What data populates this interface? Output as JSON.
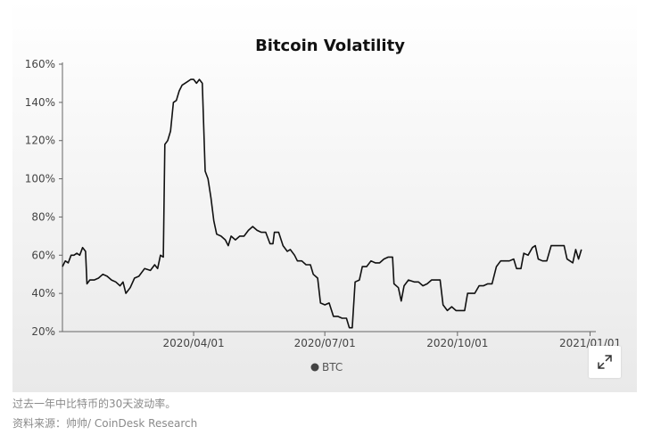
{
  "caption": "过去一年中比特币的30天波动率。",
  "source": "资料来源：帅帅/ CoinDesk Research",
  "expand_icon": "expand-icon",
  "chart_data": {
    "type": "line",
    "title": "Bitcoin Volatility",
    "xlabel": "",
    "ylabel": "",
    "x_ticks": [
      "2020/04/01",
      "2020/07/01",
      "2020/10/01",
      "2021/01/01"
    ],
    "y_ticks": [
      "20%",
      "40%",
      "60%",
      "80%",
      "100%",
      "120%",
      "140%",
      "160%"
    ],
    "ylim": [
      20,
      160
    ],
    "xlim": [
      "2020-01-01",
      "2021-01-05"
    ],
    "grid": false,
    "legend_position": "bottom",
    "line_color": "#111111",
    "series": [
      {
        "name": "BTC",
        "points": [
          [
            "2020-01-01",
            54
          ],
          [
            "2020-01-03",
            57
          ],
          [
            "2020-01-05",
            56
          ],
          [
            "2020-01-07",
            60
          ],
          [
            "2020-01-09",
            60
          ],
          [
            "2020-01-11",
            61
          ],
          [
            "2020-01-13",
            60
          ],
          [
            "2020-01-15",
            64
          ],
          [
            "2020-01-17",
            62
          ],
          [
            "2020-01-18",
            45
          ],
          [
            "2020-01-20",
            47
          ],
          [
            "2020-01-23",
            47
          ],
          [
            "2020-01-26",
            48
          ],
          [
            "2020-01-29",
            50
          ],
          [
            "2020-02-01",
            49
          ],
          [
            "2020-02-04",
            47
          ],
          [
            "2020-02-07",
            46
          ],
          [
            "2020-02-10",
            44
          ],
          [
            "2020-02-12",
            46
          ],
          [
            "2020-02-14",
            40
          ],
          [
            "2020-02-17",
            43
          ],
          [
            "2020-02-20",
            48
          ],
          [
            "2020-02-23",
            49
          ],
          [
            "2020-02-27",
            53
          ],
          [
            "2020-03-02",
            52
          ],
          [
            "2020-03-05",
            55
          ],
          [
            "2020-03-07",
            53
          ],
          [
            "2020-03-09",
            60
          ],
          [
            "2020-03-11",
            59
          ],
          [
            "2020-03-12",
            118
          ],
          [
            "2020-03-14",
            120
          ],
          [
            "2020-03-16",
            125
          ],
          [
            "2020-03-18",
            140
          ],
          [
            "2020-03-20",
            141
          ],
          [
            "2020-03-22",
            146
          ],
          [
            "2020-03-24",
            149
          ],
          [
            "2020-03-26",
            150
          ],
          [
            "2020-03-28",
            151
          ],
          [
            "2020-03-30",
            152
          ],
          [
            "2020-04-01",
            152
          ],
          [
            "2020-04-03",
            150
          ],
          [
            "2020-04-05",
            152
          ],
          [
            "2020-04-07",
            150
          ],
          [
            "2020-04-09",
            104
          ],
          [
            "2020-04-11",
            100
          ],
          [
            "2020-04-13",
            90
          ],
          [
            "2020-04-15",
            78
          ],
          [
            "2020-04-17",
            71
          ],
          [
            "2020-04-20",
            70
          ],
          [
            "2020-04-23",
            68
          ],
          [
            "2020-04-25",
            65
          ],
          [
            "2020-04-27",
            70
          ],
          [
            "2020-04-30",
            68
          ],
          [
            "2020-05-03",
            70
          ],
          [
            "2020-05-06",
            70
          ],
          [
            "2020-05-09",
            73
          ],
          [
            "2020-05-12",
            75
          ],
          [
            "2020-05-15",
            73
          ],
          [
            "2020-05-18",
            72
          ],
          [
            "2020-05-21",
            72
          ],
          [
            "2020-05-24",
            66
          ],
          [
            "2020-05-26",
            66
          ],
          [
            "2020-05-27",
            72
          ],
          [
            "2020-05-30",
            72
          ],
          [
            "2020-06-02",
            65
          ],
          [
            "2020-06-05",
            62
          ],
          [
            "2020-06-07",
            63
          ],
          [
            "2020-06-10",
            60
          ],
          [
            "2020-06-12",
            57
          ],
          [
            "2020-06-15",
            57
          ],
          [
            "2020-06-18",
            55
          ],
          [
            "2020-06-21",
            55
          ],
          [
            "2020-06-23",
            50
          ],
          [
            "2020-06-26",
            48
          ],
          [
            "2020-06-28",
            35
          ],
          [
            "2020-07-01",
            34
          ],
          [
            "2020-07-04",
            35
          ],
          [
            "2020-07-07",
            28
          ],
          [
            "2020-07-10",
            28
          ],
          [
            "2020-07-13",
            27
          ],
          [
            "2020-07-16",
            27
          ],
          [
            "2020-07-18",
            22
          ],
          [
            "2020-07-20",
            22
          ],
          [
            "2020-07-22",
            46
          ],
          [
            "2020-07-25",
            47
          ],
          [
            "2020-07-27",
            54
          ],
          [
            "2020-07-30",
            54
          ],
          [
            "2020-08-02",
            57
          ],
          [
            "2020-08-05",
            56
          ],
          [
            "2020-08-08",
            56
          ],
          [
            "2020-08-11",
            58
          ],
          [
            "2020-08-14",
            59
          ],
          [
            "2020-08-17",
            59
          ],
          [
            "2020-08-18",
            45
          ],
          [
            "2020-08-21",
            43
          ],
          [
            "2020-08-23",
            36
          ],
          [
            "2020-08-25",
            44
          ],
          [
            "2020-08-28",
            47
          ],
          [
            "2020-09-01",
            46
          ],
          [
            "2020-09-04",
            46
          ],
          [
            "2020-09-07",
            44
          ],
          [
            "2020-09-10",
            45
          ],
          [
            "2020-09-13",
            47
          ],
          [
            "2020-09-16",
            47
          ],
          [
            "2020-09-19",
            47
          ],
          [
            "2020-09-21",
            34
          ],
          [
            "2020-09-24",
            31
          ],
          [
            "2020-09-27",
            33
          ],
          [
            "2020-09-30",
            31
          ],
          [
            "2020-10-03",
            31
          ],
          [
            "2020-10-06",
            31
          ],
          [
            "2020-10-08",
            40
          ],
          [
            "2020-10-10",
            40
          ],
          [
            "2020-10-13",
            40
          ],
          [
            "2020-10-16",
            44
          ],
          [
            "2020-10-19",
            44
          ],
          [
            "2020-10-22",
            45
          ],
          [
            "2020-10-25",
            45
          ],
          [
            "2020-10-28",
            54
          ],
          [
            "2020-10-31",
            57
          ],
          [
            "2020-11-03",
            57
          ],
          [
            "2020-11-06",
            57
          ],
          [
            "2020-11-09",
            58
          ],
          [
            "2020-11-11",
            53
          ],
          [
            "2020-11-14",
            53
          ],
          [
            "2020-11-16",
            61
          ],
          [
            "2020-11-19",
            60
          ],
          [
            "2020-11-22",
            64
          ],
          [
            "2020-11-24",
            65
          ],
          [
            "2020-11-26",
            58
          ],
          [
            "2020-11-29",
            57
          ],
          [
            "2020-12-02",
            57
          ],
          [
            "2020-12-05",
            65
          ],
          [
            "2020-12-08",
            65
          ],
          [
            "2020-12-11",
            65
          ],
          [
            "2020-12-14",
            65
          ],
          [
            "2020-12-16",
            58
          ],
          [
            "2020-12-18",
            57
          ],
          [
            "2020-12-20",
            56
          ],
          [
            "2020-12-22",
            63
          ],
          [
            "2020-12-24",
            58
          ],
          [
            "2020-12-26",
            63
          ]
        ]
      }
    ]
  }
}
